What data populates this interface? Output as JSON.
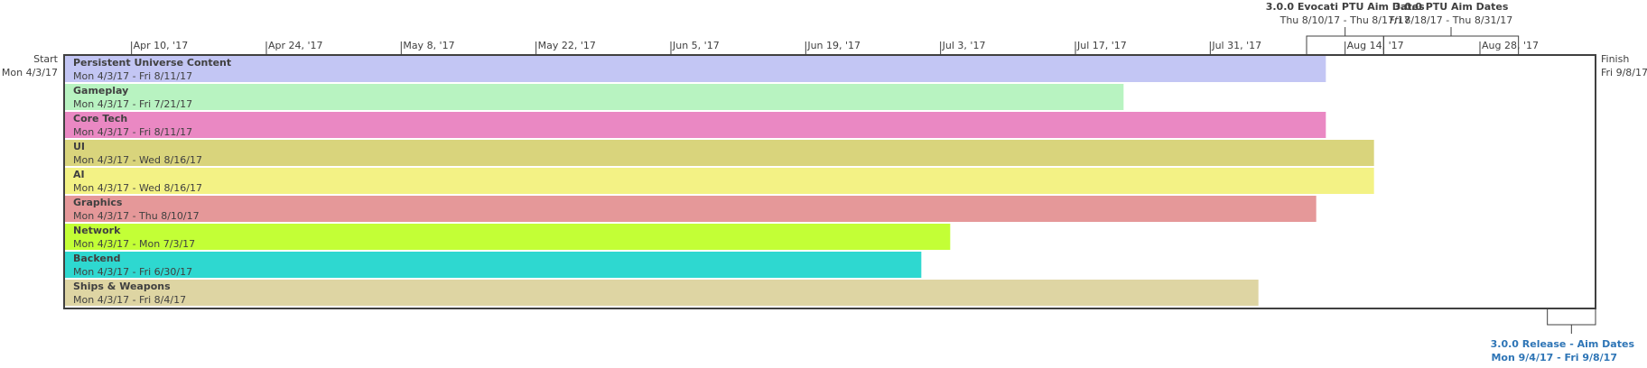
{
  "chart_data": {
    "type": "gantt-timeline",
    "timeline": {
      "start_label": "Start",
      "start_date_text": "Mon 4/3/17",
      "finish_label": "Finish",
      "finish_date_text": "Fri 9/8/17",
      "start": "2017-04-03",
      "finish": "2017-09-08"
    },
    "ticks": [
      {
        "date": "2017-04-10",
        "label": "Apr 10, '17"
      },
      {
        "date": "2017-04-24",
        "label": "Apr 24, '17"
      },
      {
        "date": "2017-05-08",
        "label": "May 8, '17"
      },
      {
        "date": "2017-05-22",
        "label": "May 22, '17"
      },
      {
        "date": "2017-06-05",
        "label": "Jun 5, '17"
      },
      {
        "date": "2017-06-19",
        "label": "Jun 19, '17"
      },
      {
        "date": "2017-07-03",
        "label": "Jul 3, '17"
      },
      {
        "date": "2017-07-17",
        "label": "Jul 17, '17"
      },
      {
        "date": "2017-07-31",
        "label": "Jul 31, '17"
      },
      {
        "date": "2017-08-14",
        "label": "Aug 14, '17"
      },
      {
        "date": "2017-08-28",
        "label": "Aug 28, '17"
      }
    ],
    "tasks": [
      {
        "name": "Persistent Universe Content",
        "dates": "Mon 4/3/17 - Fri 8/11/17",
        "start": "2017-04-03",
        "end": "2017-08-11",
        "color": "#c3c6f4"
      },
      {
        "name": "Gameplay",
        "dates": "Mon 4/3/17 - Fri 7/21/17",
        "start": "2017-04-03",
        "end": "2017-07-21",
        "color": "#b8f3c1"
      },
      {
        "name": "Core Tech",
        "dates": "Mon 4/3/17 - Fri 8/11/17",
        "start": "2017-04-03",
        "end": "2017-08-11",
        "color": "#ea88c3"
      },
      {
        "name": "UI",
        "dates": "Mon 4/3/17 - Wed 8/16/17",
        "start": "2017-04-03",
        "end": "2017-08-16",
        "color": "#d9d47c"
      },
      {
        "name": "AI",
        "dates": "Mon 4/3/17 - Wed 8/16/17",
        "start": "2017-04-03",
        "end": "2017-08-16",
        "color": "#f3f285"
      },
      {
        "name": "Graphics",
        "dates": "Mon 4/3/17 - Thu 8/10/17",
        "start": "2017-04-03",
        "end": "2017-08-10",
        "color": "#e59899"
      },
      {
        "name": "Network",
        "dates": "Mon 4/3/17 - Mon 7/3/17",
        "start": "2017-04-03",
        "end": "2017-07-03",
        "color": "#c3ff36"
      },
      {
        "name": "Backend",
        "dates": "Mon 4/3/17 - Fri 6/30/17",
        "start": "2017-04-03",
        "end": "2017-06-30",
        "color": "#2ed8d0"
      },
      {
        "name": "Ships & Weapons",
        "dates": "Mon 4/3/17 - Fri 8/4/17",
        "start": "2017-04-03",
        "end": "2017-08-04",
        "color": "#ded5a3"
      }
    ],
    "milestones_top": [
      {
        "title": "3.0.0 Evocati PTU Aim Dates",
        "dates": "Thu 8/10/17 - Thu 8/17/17",
        "start": "2017-08-10",
        "end": "2017-08-17"
      },
      {
        "title": "3.0.0 PTU Aim Dates",
        "dates": "Fri 8/18/17 - Thu 8/31/17",
        "start": "2017-08-18",
        "end": "2017-08-31"
      }
    ],
    "milestones_bottom": [
      {
        "title": "3.0.0 Release - Aim Dates",
        "dates": "Mon 9/4/17 - Fri 9/8/17",
        "start": "2017-09-04",
        "end": "2017-09-08",
        "color": "#2e75b6"
      }
    ]
  }
}
